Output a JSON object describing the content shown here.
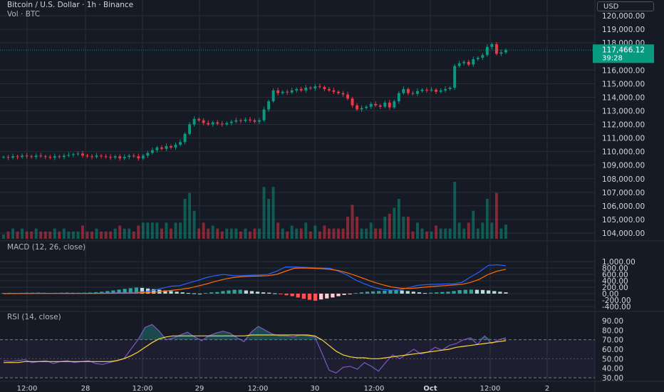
{
  "header": {
    "symbol_line": "Bitcoin / U.S. Dollar · 1h · Binance",
    "volume_label": "Vol · BTC",
    "currency_button": "USD"
  },
  "price_axis": {
    "labels": [
      "120,000.00",
      "119,000.00",
      "118,000.00",
      "116,000.00",
      "115,000.00",
      "114,000.00",
      "113,000.00",
      "112,000.00",
      "111,000.00",
      "110,000.00",
      "109,000.00",
      "108,000.00",
      "107,000.00",
      "106,000.00",
      "105,000.00",
      "104,000.00"
    ],
    "values": [
      120000,
      119000,
      118000,
      116000,
      115000,
      114000,
      113000,
      112000,
      111000,
      110000,
      109000,
      108000,
      107000,
      106000,
      105000,
      104000
    ],
    "last_price": "117,466.12",
    "countdown": "39:28",
    "last_price_color": "#089981"
  },
  "macd": {
    "title": "MACD (12, 26, close)",
    "axis_labels": [
      "1,000.00",
      "800.00",
      "600.00",
      "400.00",
      "200.00",
      "0.00",
      "-200.00",
      "-400.00"
    ],
    "axis_values": [
      1000,
      800,
      600,
      400,
      200,
      0,
      -200,
      -400
    ]
  },
  "rsi": {
    "title": "RSI (14, close)",
    "axis_labels": [
      "90.00",
      "80.00",
      "70.00",
      "60.00",
      "50.00",
      "40.00",
      "30.00"
    ],
    "axis_values": [
      90,
      80,
      70,
      60,
      50,
      40,
      30
    ]
  },
  "time_axis": {
    "labels": [
      "12:00",
      "28",
      "12:00",
      "29",
      "12:00",
      "30",
      "12:00",
      "Oct",
      "12:00",
      "2"
    ]
  },
  "colors": {
    "up": "#089981",
    "down": "#f23645",
    "macd_line": "#2962ff",
    "signal_line": "#ff6d00",
    "rsi_line": "#7e57c2",
    "rsi_ma": "#fdd835",
    "background": "#161a25",
    "grid": "#2a2e39"
  },
  "chart_data": {
    "type": "candlestick",
    "candle_closes": [
      109600,
      109550,
      109650,
      109600,
      109700,
      109650,
      109600,
      109700,
      109650,
      109600,
      109550,
      109650,
      109600,
      109700,
      109750,
      109800,
      109850,
      109700,
      109650,
      109600,
      109700,
      109650,
      109600,
      109550,
      109650,
      109500,
      109600,
      109700,
      109650,
      109500,
      109700,
      109900,
      110100,
      110300,
      110200,
      110400,
      110300,
      110500,
      110700,
      111300,
      112000,
      112400,
      112300,
      112100,
      112000,
      112150,
      112050,
      112000,
      112100,
      112200,
      112300,
      112250,
      112350,
      112300,
      112200,
      112300,
      113100,
      113700,
      114500,
      114300,
      114400,
      114350,
      114500,
      114600,
      114500,
      114700,
      114650,
      114800,
      114750,
      114600,
      114500,
      114400,
      114300,
      114200,
      113900,
      113400,
      113100,
      113200,
      113300,
      113500,
      113400,
      113300,
      113600,
      113250,
      113700,
      114300,
      114600,
      114300,
      114250,
      114450,
      114550,
      114500,
      114550,
      114400,
      114500,
      114600,
      114700,
      116300,
      116500,
      116600,
      116400,
      116800,
      116900,
      117100,
      117700,
      117900,
      117200,
      117300,
      117466
    ],
    "macd": {
      "macd_line": [
        0,
        5,
        10,
        8,
        12,
        10,
        6,
        3,
        5,
        8,
        10,
        15,
        20,
        25,
        30,
        40,
        60,
        100,
        170,
        230,
        250,
        330,
        410,
        500,
        560,
        600,
        560,
        560,
        570,
        580,
        600,
        700,
        830,
        830,
        820,
        810,
        800,
        790,
        700,
        580,
        420,
        300,
        200,
        130,
        110,
        120,
        190,
        260,
        280,
        290,
        300,
        310,
        350,
        520,
        680,
        880,
        900,
        870
      ],
      "signal_line": [
        0,
        2,
        4,
        5,
        6,
        7,
        7,
        6,
        6,
        6,
        7,
        9,
        11,
        14,
        17,
        21,
        29,
        43,
        68,
        100,
        130,
        170,
        230,
        300,
        380,
        450,
        500,
        530,
        540,
        550,
        560,
        600,
        700,
        790,
        800,
        790,
        780,
        760,
        720,
        650,
        560,
        460,
        360,
        280,
        210,
        170,
        160,
        180,
        210,
        230,
        250,
        270,
        290,
        350,
        450,
        600,
        700,
        760
      ],
      "histogram": [
        20,
        25,
        20,
        25,
        30,
        30,
        28,
        25,
        22,
        25,
        30,
        28,
        25,
        27,
        30,
        35,
        45,
        60,
        80,
        100,
        125,
        150,
        170,
        190,
        180,
        160,
        140,
        120,
        100,
        80,
        60,
        40,
        20,
        10,
        0,
        20,
        40,
        50,
        80,
        100,
        120,
        120,
        100,
        80,
        60,
        40,
        30,
        10,
        -20,
        -50,
        -80,
        -120,
        -160,
        -190,
        -220,
        -180,
        -150,
        -120,
        -80,
        -40,
        -10,
        20,
        40,
        60,
        70,
        80,
        90,
        100,
        110,
        100,
        80,
        60,
        40,
        20,
        30,
        40,
        50,
        60,
        80,
        110,
        120,
        125,
        120,
        115,
        100,
        80,
        60,
        40
      ]
    },
    "rsi": {
      "rsi_line": [
        48,
        47,
        48,
        49,
        46,
        47,
        48,
        45,
        47,
        48,
        46,
        47,
        48,
        45,
        44,
        46,
        48,
        50,
        60,
        70,
        83,
        86,
        79,
        70,
        72,
        75,
        78,
        73,
        69,
        74,
        77,
        79,
        77,
        72,
        68,
        78,
        84,
        80,
        76,
        74,
        74,
        73,
        75,
        74,
        73,
        56,
        38,
        35,
        41,
        42,
        39,
        46,
        42,
        37,
        46,
        54,
        50,
        55,
        60,
        55,
        57,
        62,
        59,
        64,
        66,
        70,
        72,
        65,
        74,
        66,
        70,
        72
      ],
      "rsi_ma": [
        46,
        46,
        46,
        47,
        47,
        47,
        47,
        47,
        47,
        47,
        47,
        47,
        47,
        47,
        47,
        47,
        48,
        50,
        53,
        57,
        62,
        67,
        71,
        73,
        74,
        74,
        74,
        74,
        74,
        74,
        74,
        74,
        74,
        74,
        74,
        75,
        75,
        75,
        75,
        75,
        75,
        75,
        75,
        75,
        74,
        70,
        64,
        58,
        54,
        52,
        51,
        51,
        50,
        50,
        51,
        52,
        53,
        54,
        55,
        56,
        57,
        58,
        59,
        60,
        62,
        63,
        64,
        65,
        66,
        67,
        68,
        69
      ]
    }
  }
}
